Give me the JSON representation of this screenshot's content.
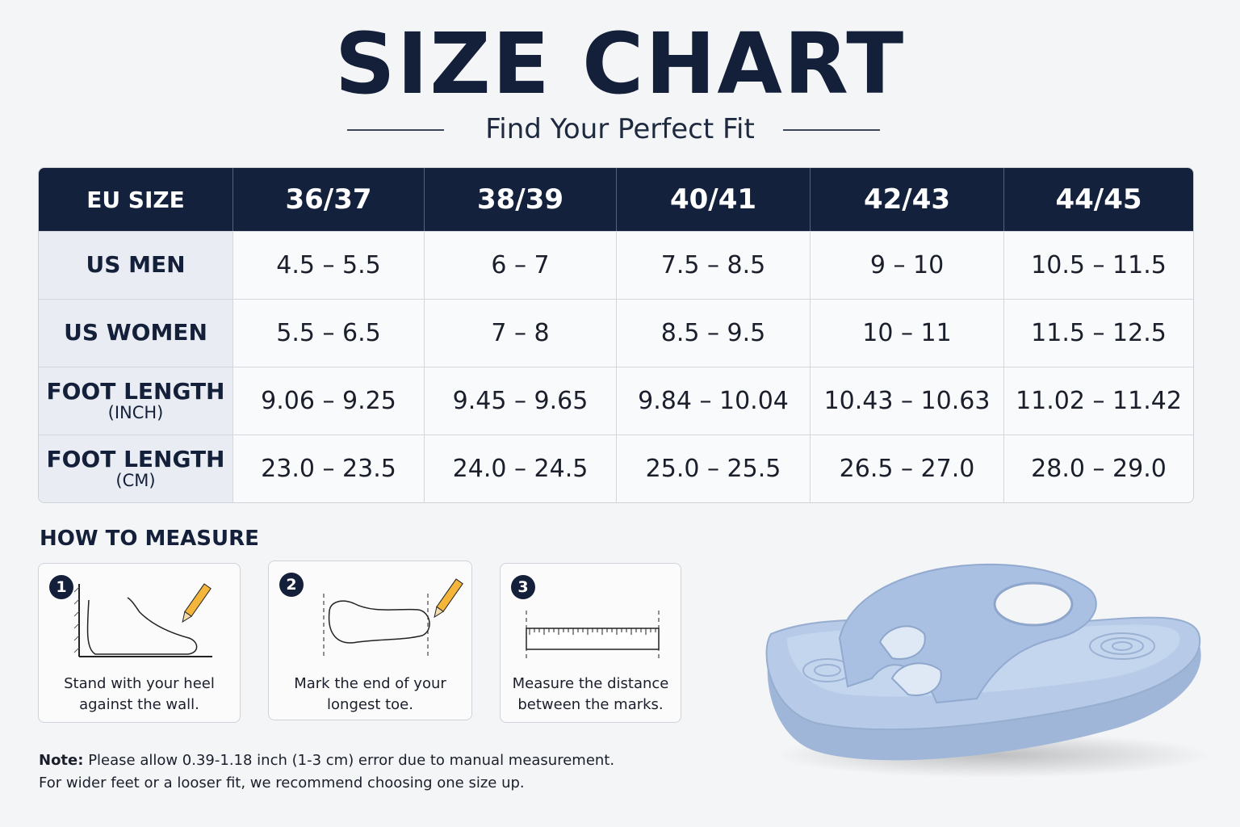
{
  "header": {
    "title": "SIZE CHART",
    "subtitle": "Find Your Perfect Fit"
  },
  "table": {
    "header": [
      "EU SIZE",
      "36/37",
      "38/39",
      "40/41",
      "42/43",
      "44/45"
    ],
    "rows": [
      {
        "label": "US MEN",
        "cells": [
          "4.5 – 5.5",
          "6 – 7",
          "7.5 – 8.5",
          "9 – 10",
          "10.5 – 11.5"
        ]
      },
      {
        "label": "US WOMEN",
        "cells": [
          "5.5 – 6.5",
          "7 – 8",
          "8.5 – 9.5",
          "10 – 11",
          "11.5 – 12.5"
        ]
      },
      {
        "label": "FOOT LENGTH",
        "unit": "(INCH)",
        "cells": [
          "9.06 – 9.25",
          "9.45 – 9.65",
          "9.84 – 10.04",
          "10.43 – 10.63",
          "11.02 – 11.42"
        ]
      },
      {
        "label": "FOOT LENGTH",
        "unit": "(CM)",
        "cells": [
          "23.0 – 23.5",
          "24.0 – 24.5",
          "25.0 – 25.5",
          "26.5 – 27.0",
          "28.0 – 29.0"
        ]
      }
    ]
  },
  "how_to_measure": {
    "title": "HOW TO MEASURE",
    "steps": [
      {
        "number": "1",
        "lines": [
          "Stand with your heel",
          "against the wall."
        ]
      },
      {
        "number": "2",
        "lines": [
          "Mark the end of your",
          "longest toe."
        ]
      },
      {
        "number": "3",
        "lines": [
          "Measure the distance",
          "between the marks."
        ]
      }
    ]
  },
  "note": {
    "label": "Note:",
    "lines": [
      "Please allow 0.39-1.18 inch (1-3 cm) error due to manual measurement.",
      "For wider feet or a looser fit, we recommend choosing one size up."
    ]
  }
}
